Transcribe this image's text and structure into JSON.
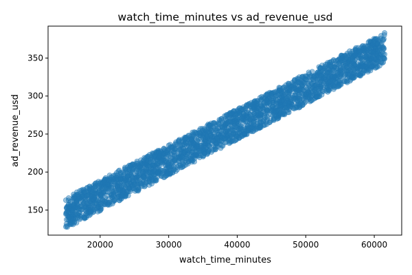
{
  "chart_data": {
    "type": "scatter",
    "title": "watch_time_minutes vs ad_revenue_usd",
    "xlabel": "watch_time_minutes",
    "ylabel": "ad_revenue_usd",
    "xlim": [
      12400,
      64000
    ],
    "ylim": [
      117,
      392
    ],
    "xticks": [
      20000,
      30000,
      40000,
      50000,
      60000
    ],
    "yticks": [
      150,
      200,
      250,
      300,
      350
    ],
    "grid": false,
    "legend": "none",
    "point_color": "#1f77b4",
    "series": [
      {
        "x_range": [
          15000,
          61500
        ],
        "relationship": "linear",
        "fit_y_at_x_min": 146,
        "fit_y_at_x_max": 363,
        "spread": 20,
        "points": [
          [
            15000,
            128
          ],
          [
            15000,
            163
          ],
          [
            15500,
            140
          ],
          [
            16000,
            150
          ],
          [
            17000,
            165
          ],
          [
            18000,
            152
          ],
          [
            20000,
            185
          ],
          [
            22000,
            170
          ],
          [
            24000,
            195
          ],
          [
            25000,
            210
          ],
          [
            27000,
            200
          ],
          [
            28000,
            222
          ],
          [
            30000,
            235
          ],
          [
            32000,
            220
          ],
          [
            33000,
            248
          ],
          [
            35000,
            245
          ],
          [
            37000,
            262
          ],
          [
            40000,
            280
          ],
          [
            42000,
            270
          ],
          [
            45000,
            300
          ],
          [
            47000,
            290
          ],
          [
            50000,
            322
          ],
          [
            52000,
            310
          ],
          [
            55000,
            345
          ],
          [
            57000,
            330
          ],
          [
            60000,
            372
          ],
          [
            61500,
            383
          ],
          [
            61500,
            355
          ]
        ]
      }
    ]
  }
}
